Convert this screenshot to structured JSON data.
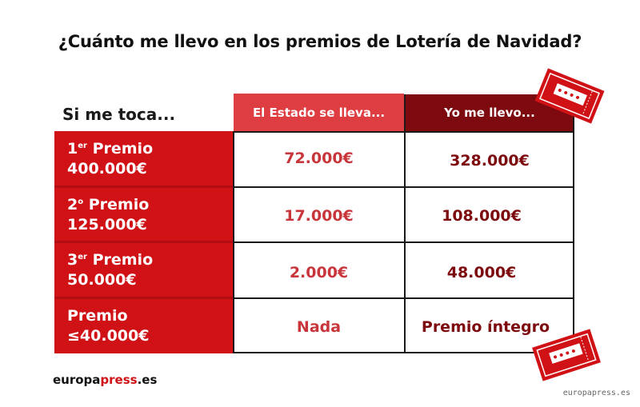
{
  "title": "¿Cuánto me llevo en los premios de Lotería de Navidad?",
  "table": {
    "row_header_label": "Si me toca...",
    "col_estado": "El Estado se lleva...",
    "col_yo": "Yo me llevo...",
    "rows": [
      {
        "ordinal": "1",
        "sup": "er",
        "name": "Premio",
        "amount": "400.000€",
        "estado": "72.000€",
        "yo": "328.000€"
      },
      {
        "ordinal": "2",
        "sup": "o",
        "name": "Premio",
        "amount": "125.000€",
        "estado": "17.000€",
        "yo": "108.000€"
      },
      {
        "ordinal": "3",
        "sup": "er",
        "name": "Premio",
        "amount": "50.000€",
        "estado": "2.000€",
        "yo": "48.000€"
      },
      {
        "name": "Premio",
        "amount": "≤40.000€",
        "estado": "Nada",
        "yo": "Premio íntegro"
      }
    ]
  },
  "logo": {
    "part1": "europa",
    "part2": "press",
    "part3": ".es"
  },
  "watermark": "europapress.es",
  "colors": {
    "red": "#d01116",
    "dark_red": "#7c0a0e",
    "light_red": "#de3d41"
  },
  "icons": [
    "lottery-ticket-icon",
    "lottery-ticket-icon"
  ]
}
